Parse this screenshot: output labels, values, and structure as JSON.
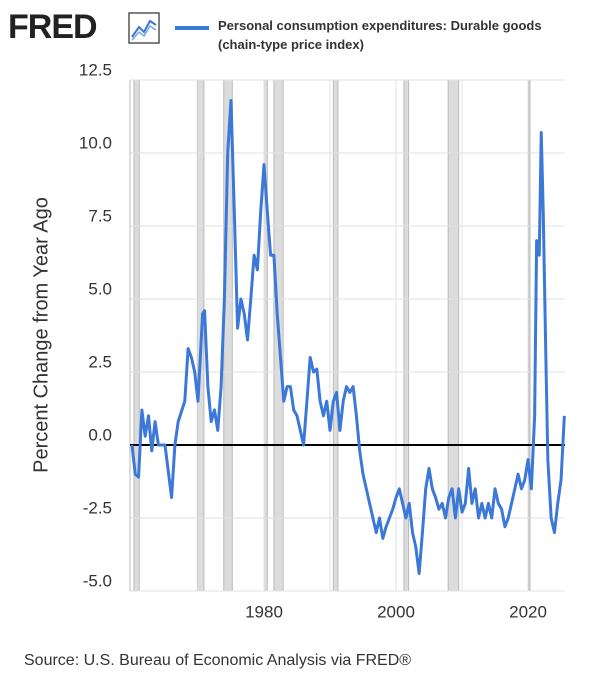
{
  "logo": "FRED",
  "source": "Source: U.S. Bureau of Economic Analysis via FRED®",
  "chart_data": {
    "type": "line",
    "y_label": "Percent Change from Year Ago",
    "x": [
      1960,
      1960.5,
      1961,
      1961.5,
      1962,
      1962.5,
      1963,
      1963.5,
      1964,
      1965,
      1965.5,
      1966,
      1966.5,
      1967,
      1968,
      1968.5,
      1969,
      1969.5,
      1970,
      1970.7,
      1971,
      1971.5,
      1972,
      1972.5,
      1973,
      1973.5,
      1974,
      1974.5,
      1975,
      1975.5,
      1976,
      1976.5,
      1977,
      1977.5,
      1978,
      1978.5,
      1979,
      1979.5,
      1980,
      1980.5,
      1981,
      1981.5,
      1982,
      1982.5,
      1983,
      1983.5,
      1984,
      1984.5,
      1985,
      1985.5,
      1986,
      1986.5,
      1987,
      1987.5,
      1988,
      1988.5,
      1989,
      1989.5,
      1990,
      1990.5,
      1991,
      1991.5,
      1992,
      1992.5,
      1993,
      1993.5,
      1994,
      1994.5,
      1995,
      1995.5,
      1996,
      1996.5,
      1997,
      1997.5,
      1998,
      1998.5,
      1999,
      1999.5,
      2000,
      2000.5,
      2001,
      2001.5,
      2002,
      2002.5,
      2003,
      2003.5,
      2004,
      2004.5,
      2005,
      2005.5,
      2006,
      2006.5,
      2007,
      2007.5,
      2008,
      2008.5,
      2009,
      2009.5,
      2010,
      2010.5,
      2011,
      2011.5,
      2012,
      2012.5,
      2013,
      2013.5,
      2014,
      2014.5,
      2015,
      2015.5,
      2016,
      2016.5,
      2017,
      2017.5,
      2018,
      2018.5,
      2019,
      2019.5,
      2020,
      2020.5,
      2021,
      2021.3,
      2021.7,
      2022,
      2022.3,
      2022.7,
      2023,
      2023.5,
      2024,
      2024.5,
      2025,
      2025.5
    ],
    "series": [
      {
        "name": "Personal consumption expenditures: Durable goods (chain-type price index)",
        "color": "#3b78d8",
        "values": [
          0.0,
          -1.0,
          -1.1,
          1.2,
          0.3,
          1.0,
          -0.2,
          0.8,
          0.0,
          0.0,
          -0.9,
          -1.8,
          0.0,
          0.8,
          1.5,
          3.3,
          3.0,
          2.5,
          1.5,
          4.5,
          4.6,
          2.0,
          0.8,
          1.2,
          0.5,
          2.0,
          5.0,
          10.0,
          11.8,
          8.0,
          4.0,
          5.0,
          4.5,
          3.6,
          5.0,
          6.5,
          6.0,
          8.0,
          9.6,
          8.0,
          6.5,
          6.5,
          4.5,
          3.0,
          1.5,
          2.0,
          2.0,
          1.2,
          1.0,
          0.5,
          0.0,
          1.5,
          3.0,
          2.5,
          2.6,
          1.5,
          1.0,
          1.5,
          0.5,
          1.5,
          1.8,
          0.5,
          1.5,
          2.0,
          1.8,
          2.0,
          1.0,
          -0.2,
          -1.0,
          -1.5,
          -2.0,
          -2.5,
          -3.0,
          -2.5,
          -3.2,
          -2.8,
          -2.5,
          -2.2,
          -1.8,
          -1.5,
          -2.0,
          -2.5,
          -2.0,
          -3.0,
          -3.5,
          -4.4,
          -3.0,
          -1.5,
          -0.8,
          -1.5,
          -1.8,
          -2.2,
          -2.0,
          -2.5,
          -1.8,
          -1.5,
          -2.5,
          -1.5,
          -2.3,
          -2.0,
          -0.8,
          -2.0,
          -1.5,
          -2.5,
          -2.0,
          -2.5,
          -2.0,
          -2.5,
          -1.5,
          -2.0,
          -2.2,
          -2.8,
          -2.5,
          -2.0,
          -1.5,
          -1.0,
          -1.5,
          -1.2,
          -0.5,
          -1.5,
          1.0,
          7.0,
          6.5,
          10.7,
          8.0,
          3.0,
          -0.5,
          -2.5,
          -3.0,
          -2.0,
          -1.2,
          1.0
        ]
      }
    ],
    "xlim": [
      1959.7,
      2025.6
    ],
    "ylim": [
      -5,
      12.5
    ],
    "xticks": [
      1980,
      2000,
      2020
    ],
    "xgrid": [
      1970,
      1980,
      1990,
      2000,
      2010,
      2020
    ],
    "yticks": [
      12.5,
      {
        "value": 10,
        "label": "10.0"
      },
      7.5,
      {
        "value": 5,
        "label": "5.0"
      },
      2.5,
      {
        "value": 0,
        "label": "0.0"
      },
      -2.5,
      {
        "value": -5,
        "label": "-5.0"
      }
    ],
    "recessions": [
      [
        1960.3,
        1961.1
      ],
      [
        1969.9,
        1970.9
      ],
      [
        1973.9,
        1975.2
      ],
      [
        1980.0,
        1980.5
      ],
      [
        1981.5,
        1982.9
      ],
      [
        1990.5,
        1991.2
      ],
      [
        2001.2,
        2001.9
      ],
      [
        2007.9,
        2009.5
      ],
      [
        2020.1,
        2020.3
      ]
    ],
    "grid": true
  }
}
